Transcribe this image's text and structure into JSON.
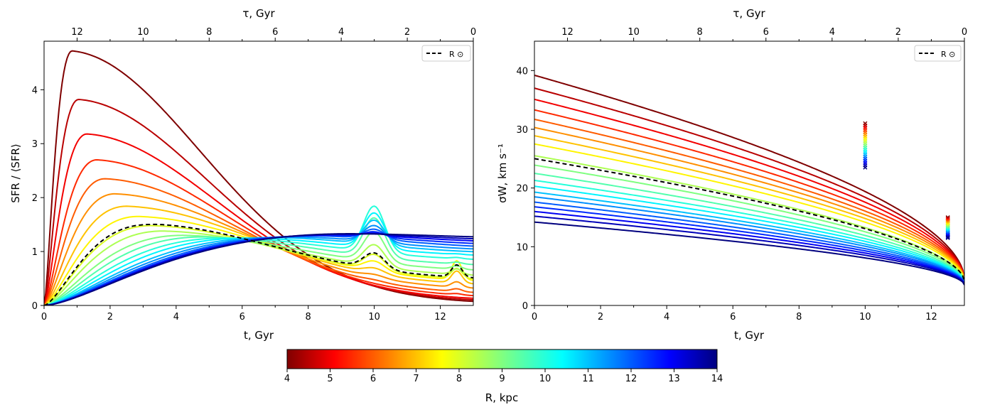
{
  "chart_data": [
    {
      "type": "line",
      "panel": "left",
      "xlabel": "t,  Gyr",
      "ylabel": "SFR / ⟨SFR⟩",
      "top_xlabel": "τ,  Gyr",
      "xlim": [
        0,
        13
      ],
      "ylim": [
        0,
        4.9
      ],
      "xticks": [
        "0",
        "2",
        "4",
        "6",
        "8",
        "10",
        "12"
      ],
      "yticks": [
        "0",
        "1",
        "2",
        "3",
        "4"
      ],
      "top_ticks": [
        "12",
        "10",
        "8",
        "6",
        "4",
        "2",
        "0"
      ],
      "legend": "R ⊙",
      "legend_position": "top-right",
      "reference_line": {
        "name": "R ⊙",
        "R": 8.0,
        "style": "black dashed"
      },
      "R_values_kpc": [
        4,
        4.5,
        5,
        5.5,
        6,
        6.5,
        7,
        7.5,
        8,
        8.5,
        9,
        9.5,
        10,
        10.5,
        11,
        11.5,
        12,
        12.5,
        13,
        13.5,
        14
      ],
      "curve_model": {
        "peak_time_Gyr": [
          0.85,
          1.05,
          1.3,
          1.6,
          1.85,
          2.15,
          2.5,
          2.85,
          3.25,
          3.6,
          4.2,
          4.8,
          5.5,
          6.2,
          7.0,
          7.6,
          8.2,
          8.6,
          8.9,
          9.1,
          9.3
        ],
        "peak_value": [
          4.72,
          3.82,
          3.18,
          2.7,
          2.35,
          2.07,
          1.84,
          1.65,
          1.48,
          1.38,
          1.3,
          1.27,
          1.25,
          1.25,
          1.26,
          1.27,
          1.29,
          1.3,
          1.31,
          1.32,
          1.33
        ],
        "end_value_t13": [
          0.03,
          0.06,
          0.09,
          0.14,
          0.2,
          0.28,
          0.36,
          0.42,
          0.45,
          0.52,
          0.62,
          0.72,
          0.82,
          0.9,
          0.96,
          1.01,
          1.06,
          1.11,
          1.16,
          1.2,
          1.24
        ],
        "burst_t10_amp": [
          0,
          0,
          0,
          0,
          0.02,
          0.05,
          0.1,
          0.18,
          0.28,
          0.4,
          0.55,
          0.72,
          0.85,
          0.65,
          0.45,
          0.3,
          0.18,
          0.1,
          0.05,
          0.02,
          0
        ],
        "burst_t12_5_amp": [
          0,
          0,
          0,
          0.02,
          0.05,
          0.1,
          0.22,
          0.35,
          0.18,
          0.1,
          0.06,
          0.03,
          0.02,
          0.01,
          0,
          0,
          0,
          0,
          0,
          0,
          0
        ]
      }
    },
    {
      "type": "line",
      "panel": "right",
      "xlabel": "t,  Gyr",
      "ylabel": "σW,  km s⁻¹",
      "top_xlabel": "τ,  Gyr",
      "xlim": [
        0,
        13
      ],
      "ylim": [
        0,
        45
      ],
      "xticks": [
        "0",
        "2",
        "4",
        "6",
        "8",
        "10",
        "12"
      ],
      "yticks": [
        "0",
        "10",
        "20",
        "30",
        "40"
      ],
      "top_ticks": [
        "12",
        "10",
        "8",
        "6",
        "4",
        "2",
        "0"
      ],
      "legend": "R ⊙",
      "legend_position": "top-right",
      "reference_line": {
        "name": "R ⊙",
        "R": 8.0,
        "style": "black dashed",
        "sigma_t0": 25.0
      },
      "R_values_kpc": [
        4,
        4.5,
        5,
        5.5,
        6,
        6.5,
        7,
        7.5,
        8,
        8.5,
        9,
        9.5,
        10,
        10.5,
        11,
        11.5,
        12,
        12.5,
        13,
        13.5,
        14
      ],
      "sigma_at_t0": [
        39.2,
        37.0,
        35.1,
        33.3,
        31.7,
        30.3,
        28.9,
        27.5,
        25.0,
        25.5,
        23.9,
        22.5,
        21.3,
        20.3,
        19.3,
        18.5,
        17.6,
        16.8,
        16.0,
        15.2,
        14.2
      ],
      "sigma_at_t13": [
        4.5,
        4.45,
        4.4,
        4.35,
        4.3,
        4.25,
        4.2,
        4.15,
        4.1,
        4.05,
        4.0,
        3.95,
        3.9,
        3.85,
        3.8,
        3.75,
        3.7,
        3.65,
        3.6,
        3.55,
        3.5
      ],
      "markers": [
        {
          "t": 10.0,
          "sigma_range": [
            23.5,
            31.0
          ],
          "symbol": "x"
        },
        {
          "t": 12.5,
          "sigma_range": [
            11.5,
            15.0
          ],
          "symbol": "x"
        }
      ]
    }
  ],
  "colorbar": {
    "label": "R,  kpc",
    "range": [
      4,
      14
    ],
    "ticks": [
      "4",
      "5",
      "6",
      "7",
      "8",
      "9",
      "10",
      "11",
      "12",
      "13",
      "14"
    ],
    "colormap": "jet"
  }
}
